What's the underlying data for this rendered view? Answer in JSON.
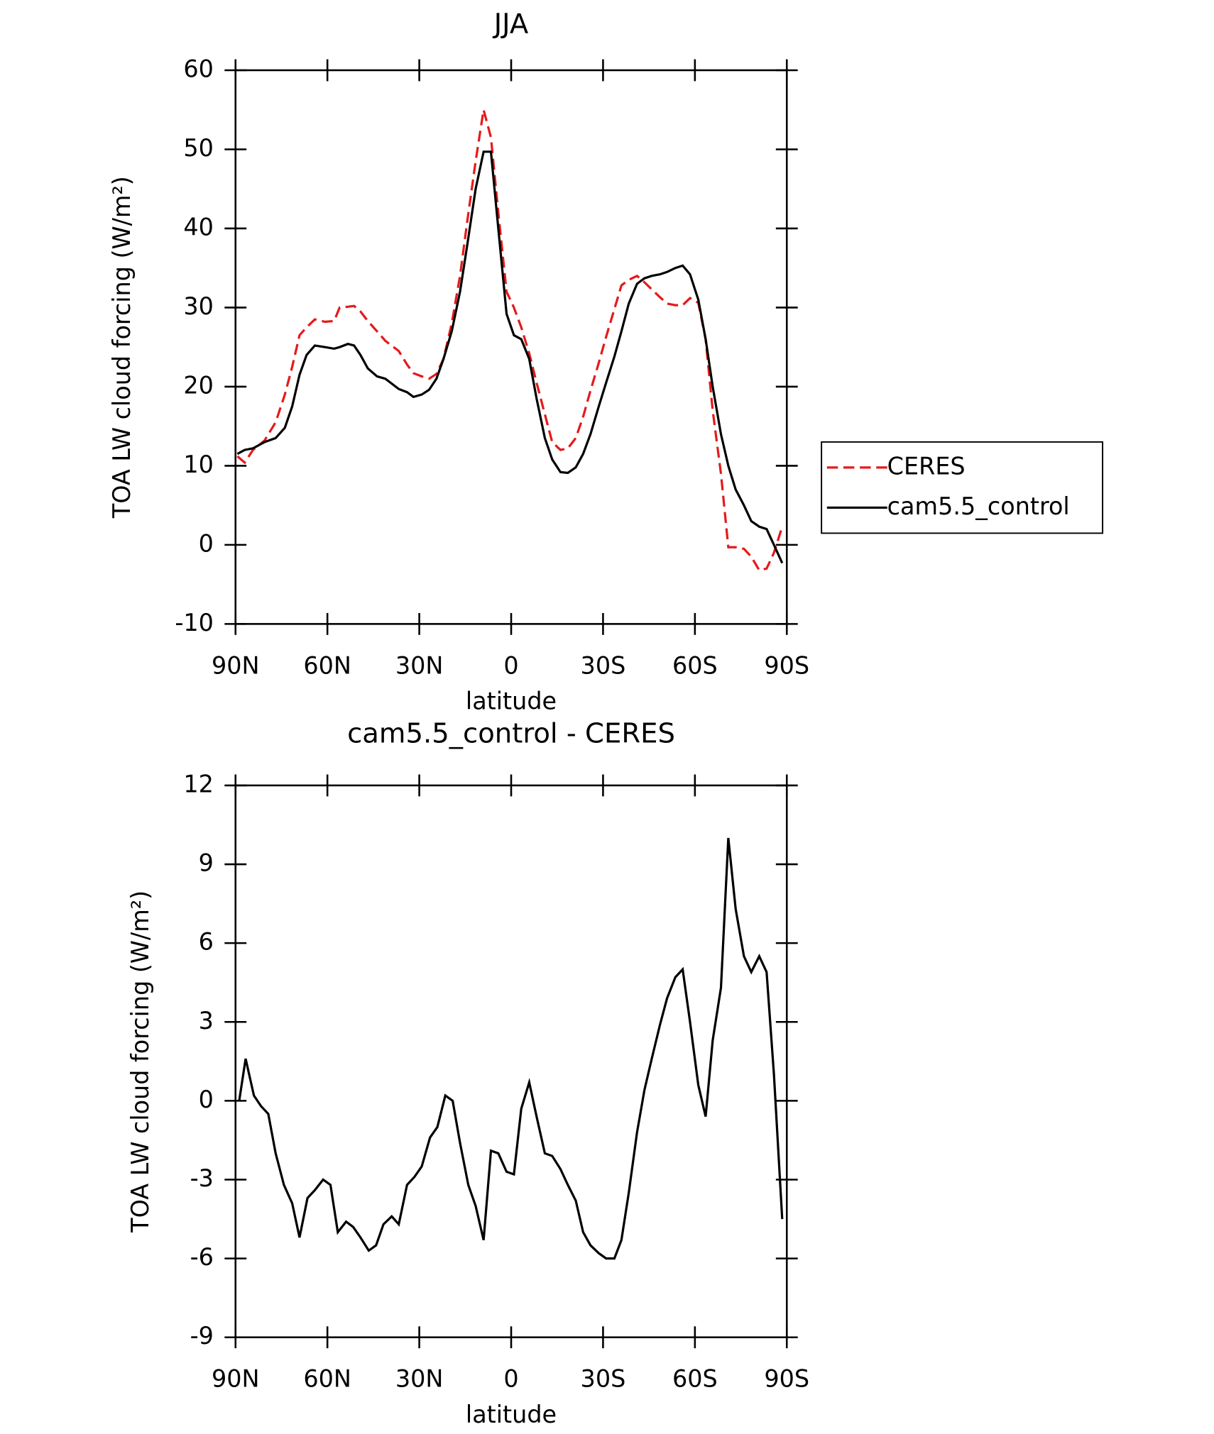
{
  "chart_data": [
    {
      "type": "line",
      "title": "JJA",
      "x_label": "latitude",
      "y_label": "TOA LW cloud forcing (W/m²)",
      "x": [
        89.4,
        87.0,
        84.3,
        80.5,
        76.9,
        73.9,
        71.5,
        69.1,
        66.8,
        64.1,
        60.8,
        57.8,
        56.0,
        53.3,
        51.3,
        49.2,
        46.8,
        43.8,
        41.1,
        36.7,
        34.0,
        31.9,
        29.2,
        26.8,
        24.4,
        22.1,
        19.4,
        16.7,
        14.3,
        11.6,
        9.0,
        6.6,
        4.2,
        1.5,
        -0.9,
        -3.3,
        -5.9,
        -8.3,
        -11.0,
        -13.4,
        -16.1,
        -18.5,
        -21.1,
        -23.5,
        -25.9,
        -28.6,
        -31.0,
        -33.7,
        -36.0,
        -38.4,
        -41.1,
        -43.5,
        -45.9,
        -48.6,
        -50.9,
        -53.6,
        -56.0,
        -58.4,
        -61.1,
        -63.5,
        -65.8,
        -68.5,
        -70.9,
        -73.3,
        -76.0,
        -78.4,
        -81.0,
        -83.4,
        -85.8,
        -88.5
      ],
      "series": [
        {
          "name": "CERES",
          "color": "#e41a1c",
          "line_style": "dashed",
          "values": [
            11.2,
            10.4,
            12,
            13.2,
            15.5,
            19,
            22.5,
            26.5,
            27.5,
            28.5,
            28.2,
            28.3,
            30,
            30.1,
            30.2,
            29.5,
            28.3,
            27,
            25.8,
            24.5,
            22.8,
            21.7,
            21.3,
            21,
            21.6,
            23.5,
            28,
            34,
            41,
            48.5,
            55,
            51.5,
            42,
            32,
            30,
            27.5,
            24.2,
            20.5,
            16.5,
            13,
            12,
            12.2,
            13.5,
            16.2,
            19.5,
            23,
            26.3,
            29.8,
            32.8,
            33.5,
            34,
            33.2,
            32.3,
            31.3,
            30.5,
            30.3,
            30.3,
            31.2,
            30.6,
            26,
            17,
            9,
            -0.3,
            -0.3,
            -0.5,
            -1.5,
            -3.2,
            -3,
            -1,
            2.3
          ]
        },
        {
          "name": "cam5.5_control",
          "color": "#000000",
          "line_style": "solid",
          "values": [
            11.5,
            12,
            12.2,
            13,
            13.5,
            14.8,
            17.5,
            21.5,
            24,
            25.2,
            25,
            24.8,
            25,
            25.4,
            25.2,
            24,
            22.3,
            21.3,
            21,
            19.7,
            19.3,
            18.7,
            19,
            19.6,
            21,
            23.5,
            27,
            32,
            38,
            45,
            49.7,
            49.7,
            40,
            29.2,
            26.5,
            26,
            23.5,
            18.5,
            13.5,
            10.8,
            9.2,
            9.1,
            9.8,
            11.5,
            14,
            17.5,
            20.5,
            23.8,
            27,
            30.5,
            33,
            33.7,
            34,
            34.2,
            34.5,
            35,
            35.3,
            34.2,
            31,
            26,
            20,
            14,
            10,
            7,
            5,
            3,
            2.3,
            2,
            0,
            -2.3
          ]
        }
      ],
      "xlim": [
        90,
        -90
      ],
      "xticks": [
        {
          "value": 90,
          "label": "90N"
        },
        {
          "value": 60,
          "label": "60N"
        },
        {
          "value": 30,
          "label": "30N"
        },
        0,
        {
          "value": -30,
          "label": "30S"
        },
        {
          "value": -60,
          "label": "60S"
        },
        {
          "value": -90,
          "label": "90S"
        }
      ],
      "ylim": [
        -10,
        60
      ],
      "yticks": [
        -10,
        0,
        10,
        20,
        30,
        40,
        50,
        60
      ],
      "legend": "right"
    },
    {
      "type": "line",
      "title": "cam5.5_control - CERES",
      "x_label": "latitude",
      "y_label": "TOA LW cloud forcing (W/m²)",
      "x": [
        88.8,
        86.7,
        84.0,
        81.7,
        79.3,
        76.9,
        74.2,
        71.5,
        69.1,
        66.5,
        64.1,
        61.4,
        59.0,
        56.6,
        53.9,
        51.6,
        49.2,
        46.5,
        44.1,
        41.7,
        39.0,
        36.7,
        34.0,
        31.6,
        29.2,
        26.5,
        24.1,
        21.5,
        19.1,
        16.7,
        14.0,
        11.6,
        9.0,
        6.6,
        4.2,
        1.5,
        -0.9,
        -3.3,
        -5.9,
        -8.3,
        -11.0,
        -13.4,
        -16.1,
        -18.5,
        -21.1,
        -23.5,
        -25.9,
        -28.6,
        -31.0,
        -33.7,
        -36.0,
        -38.4,
        -41.1,
        -43.5,
        -45.9,
        -48.6,
        -50.9,
        -53.6,
        -56.0,
        -58.4,
        -61.1,
        -63.5,
        -65.8,
        -68.5,
        -70.9,
        -73.3,
        -76.0,
        -78.4,
        -81.0,
        -83.4,
        -85.8,
        -88.5
      ],
      "series": [
        {
          "color": "#000000",
          "line_style": "solid",
          "values": [
            0,
            1.6,
            0.2,
            -0.2,
            -0.5,
            -2.0,
            -3.2,
            -3.9,
            -5.2,
            -3.7,
            -3.4,
            -3.0,
            -3.2,
            -5.0,
            -4.6,
            -4.8,
            -5.2,
            -5.7,
            -5.5,
            -4.7,
            -4.4,
            -4.7,
            -3.2,
            -2.9,
            -2.5,
            -1.4,
            -1.0,
            0.2,
            0,
            -1.6,
            -3.2,
            -4.0,
            -5.3,
            -1.9,
            -2.0,
            -2.7,
            -2.8,
            -0.3,
            0.7,
            -0.6,
            -2.0,
            -2.1,
            -2.6,
            -3.2,
            -3.8,
            -5.0,
            -5.5,
            -5.8,
            -6.0,
            -6.0,
            -5.3,
            -3.5,
            -1.2,
            0.4,
            1.6,
            2.9,
            3.9,
            4.7,
            5.0,
            3.0,
            0.6,
            -0.6,
            2.3,
            4.3,
            10.0,
            7.3,
            5.5,
            4.9,
            5.5,
            4.9,
            1.0,
            -4.5
          ]
        }
      ],
      "xlim": [
        90,
        -90
      ],
      "xticks": [
        {
          "value": 90,
          "label": "90N"
        },
        {
          "value": 60,
          "label": "60N"
        },
        {
          "value": 30,
          "label": "30N"
        },
        0,
        {
          "value": -30,
          "label": "30S"
        },
        {
          "value": -60,
          "label": "60S"
        },
        {
          "value": -90,
          "label": "90S"
        }
      ],
      "ylim": [
        -9,
        12
      ],
      "yticks": [
        -9,
        -6,
        -3,
        0,
        3,
        6,
        9,
        12
      ]
    }
  ]
}
